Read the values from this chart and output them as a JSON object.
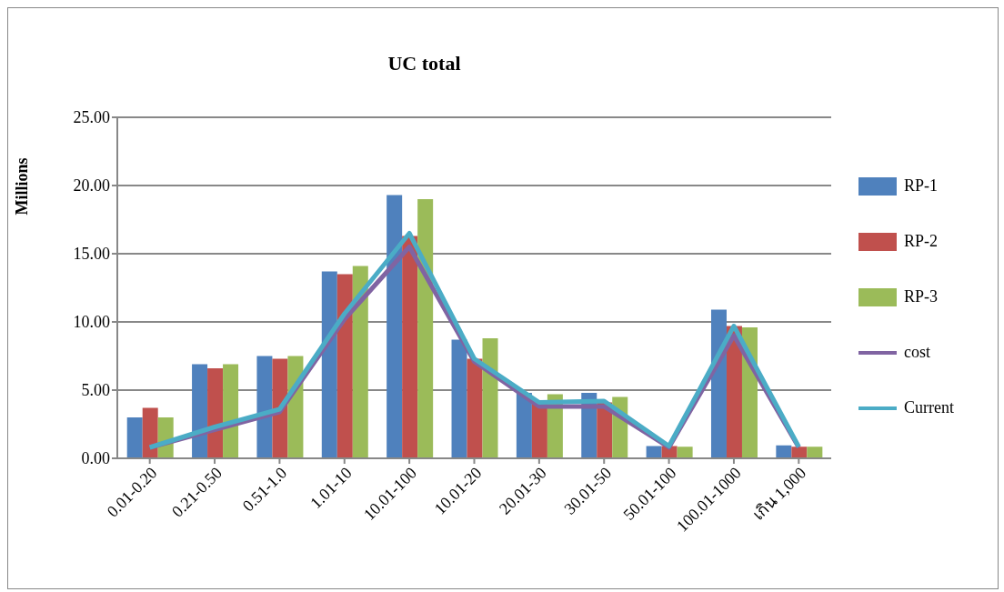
{
  "chart_data": {
    "type": "bar",
    "title": "UC total",
    "ylabel": "Millions",
    "categories": [
      "0.01-0.20",
      "0.21-0.50",
      "0.51-1.0",
      "1.01-10",
      "10.01-100",
      "10.01-20",
      "20.01-30",
      "30.01-50",
      "50.01-100",
      "100.01-1000",
      "เกิน 1,000"
    ],
    "series": [
      {
        "name": "RP-1",
        "color": "#4f81bd",
        "values": [
          3.0,
          6.9,
          7.5,
          13.7,
          19.3,
          8.7,
          4.8,
          4.8,
          0.9,
          10.9,
          0.95
        ]
      },
      {
        "name": "RP-2",
        "color": "#c0504d",
        "values": [
          3.7,
          6.6,
          7.3,
          13.5,
          16.3,
          7.3,
          4.0,
          4.1,
          0.9,
          9.7,
          0.85
        ]
      },
      {
        "name": "RP-3",
        "color": "#9bbb59",
        "values": [
          3.0,
          6.9,
          7.5,
          14.1,
          19.0,
          8.8,
          4.7,
          4.5,
          0.85,
          9.6,
          0.85
        ]
      },
      {
        "name": "cost",
        "type": "line",
        "color": "#8064a2",
        "values": [
          0.8,
          2.1,
          3.4,
          10.2,
          15.5,
          7.1,
          3.8,
          3.8,
          0.8,
          9.0,
          0.8
        ]
      },
      {
        "name": "Current",
        "type": "line",
        "color": "#4bacc6",
        "values": [
          0.8,
          2.3,
          3.6,
          10.6,
          16.5,
          7.3,
          4.1,
          4.2,
          0.9,
          9.7,
          0.85
        ]
      }
    ],
    "ylim": [
      0,
      25
    ],
    "yticks": [
      {
        "value": 0,
        "label": "0.00"
      },
      {
        "value": 5,
        "label": "5.00"
      },
      {
        "value": 10,
        "label": "10.00"
      },
      {
        "value": 15,
        "label": "15.00"
      },
      {
        "value": 20,
        "label": "20.00"
      },
      {
        "value": 25,
        "label": "25.00"
      }
    ],
    "grid": "y",
    "legend": "right",
    "marker": "none",
    "line_style": "solid"
  }
}
